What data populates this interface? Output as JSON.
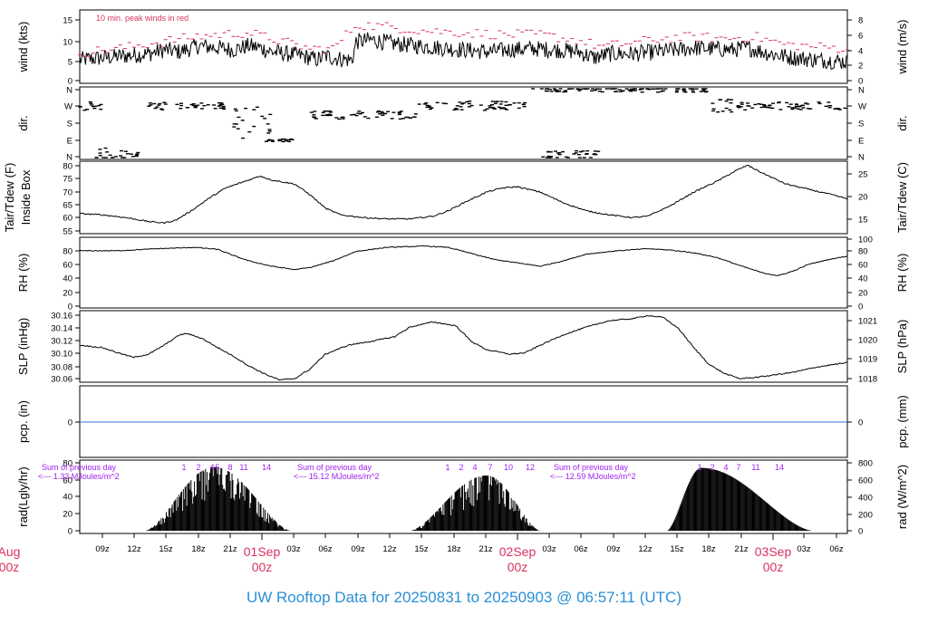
{
  "title": "UW Rooftop Data for 20250831  to  20250903 @ 06:57:11  (UTC)",
  "colors": {
    "title": "#2b8fd6",
    "day_label": "#d8345f",
    "peak": "#d8345f",
    "annotation": "#a020f0",
    "pcp_line": "#3b6fd0",
    "trace": "#000000"
  },
  "chart_data": {
    "type": "line",
    "x_tick_labels": [
      "09z",
      "12z",
      "15z",
      "18z",
      "21z",
      "03z",
      "06z",
      "09z",
      "12z",
      "15z",
      "18z",
      "21z",
      "03z",
      "06z",
      "09z",
      "12z",
      "15z",
      "18z",
      "21z",
      "03z",
      "06z"
    ],
    "day_labels": [
      {
        "date": "Aug",
        "hour": "00z"
      },
      {
        "date": "01Sep",
        "hour": "00z"
      },
      {
        "date": "02Sep",
        "hour": "00z"
      },
      {
        "date": "03Sep",
        "hour": "00z"
      }
    ],
    "panels": [
      {
        "id": "wind",
        "left_label": "wind (kts)",
        "right_label": "wind (m/s)",
        "left_ticks": [
          "0",
          "5",
          "10",
          "15"
        ],
        "right_ticks": [
          "0",
          "2",
          "4",
          "6",
          "8"
        ],
        "note": "10 min. peak winds in red",
        "range": [
          0,
          17
        ]
      },
      {
        "id": "dir",
        "left_label": "dir.",
        "right_label": "dir.",
        "left_ticks": [
          "N",
          "E",
          "S",
          "W",
          "N"
        ],
        "right_ticks": [
          "N",
          "E",
          "S",
          "W",
          "N"
        ]
      },
      {
        "id": "temp",
        "left_label": "Tair/Tdew (F)",
        "left_label2": "Inside Box",
        "right_label": "Tair/Tdew (C)",
        "left_ticks": [
          "55",
          "60",
          "65",
          "70",
          "75",
          "80"
        ],
        "right_ticks": [
          "15",
          "20",
          "25"
        ],
        "range": [
          55,
          81
        ]
      },
      {
        "id": "rh",
        "left_label": "RH (%)",
        "right_label": "RH (%)",
        "left_ticks": [
          "0",
          "20",
          "40",
          "60",
          "80"
        ],
        "right_ticks": [
          "0",
          "20",
          "40",
          "60",
          "80",
          "100"
        ],
        "range": [
          0,
          100
        ]
      },
      {
        "id": "slp",
        "left_label": "SLP (inHg)",
        "right_label": "SLP (hPa)",
        "left_ticks": [
          "30.06",
          "30.08",
          "30.10",
          "30.12",
          "30.14",
          "30.16"
        ],
        "right_ticks": [
          "1018",
          "1019",
          "1020",
          "1021"
        ],
        "range": [
          30.055,
          30.165
        ]
      },
      {
        "id": "pcp",
        "left_label": "pcp. (in)",
        "right_label": "pcp. (mm)",
        "left_ticks": [
          "0"
        ],
        "right_ticks": [
          "0"
        ]
      },
      {
        "id": "rad",
        "left_label": "rad(Lgly/hr)",
        "right_label": "rad (W/m^2)",
        "left_ticks": [
          "0",
          "20",
          "40",
          "60",
          "80"
        ],
        "right_ticks": [
          "0",
          "200",
          "400",
          "600",
          "800"
        ],
        "range": [
          0,
          80
        ]
      }
    ],
    "series": {
      "wind_mean": [
        [
          0,
          5
        ],
        [
          0.03,
          5.5
        ],
        [
          0.06,
          6
        ],
        [
          0.09,
          6.5
        ],
        [
          0.11,
          7.5
        ],
        [
          0.13,
          7
        ],
        [
          0.155,
          8.5
        ],
        [
          0.18,
          8
        ],
        [
          0.2,
          7.5
        ],
        [
          0.22,
          8.5
        ],
        [
          0.235,
          8
        ],
        [
          0.25,
          7
        ],
        [
          0.27,
          6.5
        ],
        [
          0.29,
          6
        ],
        [
          0.3,
          5.5
        ],
        [
          0.31,
          5
        ],
        [
          0.32,
          6
        ],
        [
          0.33,
          5.5
        ],
        [
          0.35,
          5
        ],
        [
          0.355,
          5
        ],
        [
          0.36,
          9.5
        ],
        [
          0.38,
          10
        ],
        [
          0.41,
          9
        ],
        [
          0.44,
          8.5
        ],
        [
          0.47,
          8
        ],
        [
          0.5,
          7.5
        ],
        [
          0.53,
          7
        ],
        [
          0.56,
          7.5
        ],
        [
          0.59,
          7.8
        ],
        [
          0.62,
          7.5
        ],
        [
          0.65,
          7
        ],
        [
          0.67,
          5.5
        ],
        [
          0.69,
          6.5
        ],
        [
          0.72,
          6.5
        ],
        [
          0.75,
          7
        ],
        [
          0.78,
          7.5
        ],
        [
          0.8,
          8
        ],
        [
          0.82,
          7.8
        ],
        [
          0.85,
          7.5
        ],
        [
          0.87,
          8
        ],
        [
          0.9,
          6.5
        ],
        [
          0.93,
          5.5
        ],
        [
          0.96,
          5
        ],
        [
          1,
          4.5
        ]
      ],
      "wind_peak": [
        [
          0,
          7
        ],
        [
          0.05,
          8
        ],
        [
          0.1,
          9.5
        ],
        [
          0.15,
          11
        ],
        [
          0.18,
          11.5
        ],
        [
          0.22,
          12
        ],
        [
          0.26,
          10
        ],
        [
          0.3,
          8
        ],
        [
          0.33,
          8
        ],
        [
          0.36,
          14
        ],
        [
          0.4,
          13.5
        ],
        [
          0.45,
          12.5
        ],
        [
          0.5,
          12
        ],
        [
          0.55,
          11.5
        ],
        [
          0.6,
          11.5
        ],
        [
          0.65,
          10
        ],
        [
          0.68,
          8.5
        ],
        [
          0.72,
          9.5
        ],
        [
          0.76,
          10.5
        ],
        [
          0.8,
          11
        ],
        [
          0.84,
          10.5
        ],
        [
          0.88,
          11
        ],
        [
          0.92,
          9
        ],
        [
          0.96,
          8.5
        ],
        [
          1,
          8
        ]
      ],
      "temp": [
        [
          0,
          62
        ],
        [
          0.03,
          61.5
        ],
        [
          0.06,
          60.5
        ],
        [
          0.09,
          59
        ],
        [
          0.11,
          58.5
        ],
        [
          0.125,
          59.5
        ],
        [
          0.145,
          63
        ],
        [
          0.17,
          68
        ],
        [
          0.19,
          71.5
        ],
        [
          0.22,
          74.5
        ],
        [
          0.235,
          76
        ],
        [
          0.25,
          74.5
        ],
        [
          0.28,
          73
        ],
        [
          0.3,
          69
        ],
        [
          0.32,
          64
        ],
        [
          0.34,
          61.5
        ],
        [
          0.37,
          60.5
        ],
        [
          0.4,
          60
        ],
        [
          0.43,
          60
        ],
        [
          0.46,
          61
        ],
        [
          0.48,
          63
        ],
        [
          0.5,
          66
        ],
        [
          0.53,
          70
        ],
        [
          0.55,
          71.5
        ],
        [
          0.57,
          72
        ],
        [
          0.6,
          70
        ],
        [
          0.63,
          66
        ],
        [
          0.66,
          63
        ],
        [
          0.69,
          61.5
        ],
        [
          0.72,
          60.5
        ],
        [
          0.74,
          61
        ],
        [
          0.77,
          65
        ],
        [
          0.8,
          70
        ],
        [
          0.83,
          74
        ],
        [
          0.855,
          78
        ],
        [
          0.87,
          80
        ],
        [
          0.89,
          77
        ],
        [
          0.92,
          73
        ],
        [
          0.95,
          71
        ],
        [
          0.98,
          69
        ],
        [
          1,
          67.5
        ]
      ],
      "rh": [
        [
          0,
          85
        ],
        [
          0.05,
          85
        ],
        [
          0.1,
          88
        ],
        [
          0.15,
          90
        ],
        [
          0.18,
          87
        ],
        [
          0.2,
          78
        ],
        [
          0.22,
          70
        ],
        [
          0.25,
          62
        ],
        [
          0.28,
          57
        ],
        [
          0.3,
          60
        ],
        [
          0.33,
          70
        ],
        [
          0.36,
          84
        ],
        [
          0.4,
          90
        ],
        [
          0.45,
          92
        ],
        [
          0.48,
          90
        ],
        [
          0.51,
          81
        ],
        [
          0.54,
          72
        ],
        [
          0.57,
          67
        ],
        [
          0.6,
          62
        ],
        [
          0.63,
          70
        ],
        [
          0.66,
          80
        ],
        [
          0.7,
          85
        ],
        [
          0.74,
          88
        ],
        [
          0.77,
          86
        ],
        [
          0.8,
          82
        ],
        [
          0.83,
          75
        ],
        [
          0.86,
          63
        ],
        [
          0.89,
          52
        ],
        [
          0.91,
          48
        ],
        [
          0.93,
          55
        ],
        [
          0.95,
          65
        ],
        [
          0.98,
          73
        ],
        [
          1,
          77
        ]
      ],
      "slp": [
        [
          0,
          30.112
        ],
        [
          0.03,
          30.108
        ],
        [
          0.05,
          30.1
        ],
        [
          0.07,
          30.093
        ],
        [
          0.09,
          30.098
        ],
        [
          0.11,
          30.112
        ],
        [
          0.13,
          30.128
        ],
        [
          0.14,
          30.13
        ],
        [
          0.16,
          30.122
        ],
        [
          0.18,
          30.108
        ],
        [
          0.2,
          30.095
        ],
        [
          0.22,
          30.08
        ],
        [
          0.24,
          30.068
        ],
        [
          0.26,
          30.058
        ],
        [
          0.28,
          30.06
        ],
        [
          0.3,
          30.075
        ],
        [
          0.32,
          30.098
        ],
        [
          0.35,
          30.112
        ],
        [
          0.38,
          30.118
        ],
        [
          0.41,
          30.125
        ],
        [
          0.43,
          30.14
        ],
        [
          0.46,
          30.148
        ],
        [
          0.49,
          30.142
        ],
        [
          0.51,
          30.118
        ],
        [
          0.53,
          30.105
        ],
        [
          0.56,
          30.098
        ],
        [
          0.58,
          30.1
        ],
        [
          0.6,
          30.112
        ],
        [
          0.63,
          30.128
        ],
        [
          0.66,
          30.14
        ],
        [
          0.69,
          30.15
        ],
        [
          0.72,
          30.153
        ],
        [
          0.74,
          30.158
        ],
        [
          0.76,
          30.155
        ],
        [
          0.78,
          30.138
        ],
        [
          0.8,
          30.108
        ],
        [
          0.82,
          30.082
        ],
        [
          0.84,
          30.068
        ],
        [
          0.86,
          30.06
        ],
        [
          0.88,
          30.062
        ],
        [
          0.9,
          30.065
        ],
        [
          0.93,
          30.07
        ],
        [
          0.96,
          30.078
        ],
        [
          1,
          30.085
        ]
      ],
      "rad_days": [
        {
          "start": 0.085,
          "end": 0.275,
          "peak": 0.175,
          "max": 75
        },
        {
          "start": 0.43,
          "end": 0.6,
          "peak": 0.53,
          "max": 65
        },
        {
          "start": 0.765,
          "end": 0.955,
          "peak": 0.81,
          "max": 74
        }
      ]
    },
    "dir_clusters": [
      {
        "x0": 0.0,
        "x1": 0.03,
        "dir": "W",
        "spread": 0.35
      },
      {
        "x0": 0.02,
        "x1": 0.08,
        "dir": "N_low",
        "spread": 0.5
      },
      {
        "x0": 0.09,
        "x1": 0.12,
        "dir": "W",
        "spread": 0.3
      },
      {
        "x0": 0.12,
        "x1": 0.19,
        "dir": "W",
        "spread": 0.25
      },
      {
        "x0": 0.2,
        "x1": 0.25,
        "dir": "S",
        "spread": 1.2
      },
      {
        "x0": 0.24,
        "x1": 0.28,
        "dir": "E",
        "spread": 0.1
      },
      {
        "x0": 0.3,
        "x1": 0.44,
        "dir": "SW",
        "spread": 0.3
      },
      {
        "x0": 0.44,
        "x1": 0.58,
        "dir": "W",
        "spread": 0.35
      },
      {
        "x0": 0.59,
        "x1": 0.7,
        "dir": "N",
        "spread": 0.2
      },
      {
        "x0": 0.6,
        "x1": 0.68,
        "dir": "N_low",
        "spread": 0.3
      },
      {
        "x0": 0.7,
        "x1": 0.82,
        "dir": "N",
        "spread": 0.2
      },
      {
        "x0": 0.82,
        "x1": 0.86,
        "dir": "W",
        "spread": 0.5
      },
      {
        "x0": 0.86,
        "x1": 1.0,
        "dir": "W",
        "spread": 0.3
      }
    ],
    "rad_hour_labels": [
      [
        "1",
        "2",
        "4",
        "5",
        "8",
        "11",
        "14"
      ],
      [
        "1",
        "2",
        "4",
        "7",
        "10",
        "12"
      ],
      [
        "1",
        "2",
        "4",
        "7",
        "11",
        "14"
      ]
    ],
    "rad_annotations": [
      {
        "line1": "Sum of previous day",
        "line2": "<--- 1.33 MJoules/m^2"
      },
      {
        "line1": "Sum of previous day",
        "line2": "<--- 15.12 MJoules/m^2"
      },
      {
        "line1": "Sum of previous day",
        "line2": "<--- 12.59 MJoules/m^2"
      }
    ]
  }
}
